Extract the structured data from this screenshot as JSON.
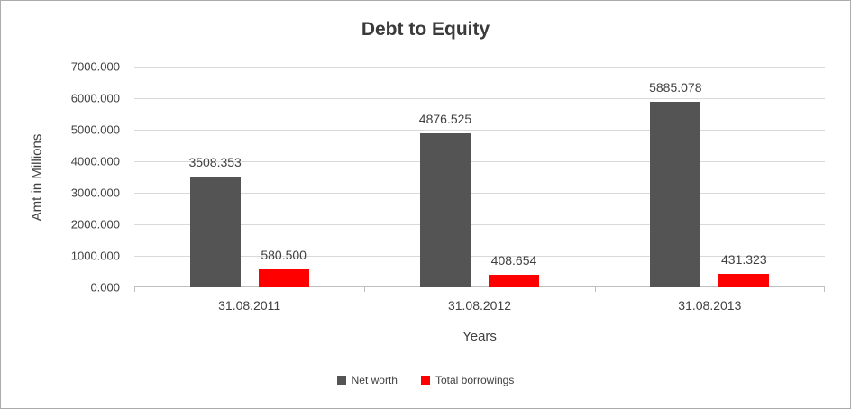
{
  "chart_data": {
    "type": "bar",
    "title": "Debt to Equity",
    "xlabel": "Years",
    "ylabel": "Amt in Millions",
    "categories": [
      "31.08.2011",
      "31.08.2012",
      "31.08.2013"
    ],
    "series": [
      {
        "name": "Net worth",
        "color": "#545454",
        "values": [
          3508.353,
          4876.525,
          5885.078
        ],
        "labels": [
          "3508.353",
          "4876.525",
          "5885.078"
        ]
      },
      {
        "name": "Total borrowings",
        "color": "#ff0000",
        "values": [
          580.5,
          408.654,
          431.323
        ],
        "labels": [
          "580.500",
          "408.654",
          "431.323"
        ]
      }
    ],
    "ylim": [
      0,
      7000
    ],
    "ytick_step": 1000,
    "yticks": [
      "0.000",
      "1000.000",
      "2000.000",
      "3000.000",
      "4000.000",
      "5000.000",
      "6000.000",
      "7000.000"
    ],
    "grid": "horizontal",
    "legend_position": "bottom"
  }
}
